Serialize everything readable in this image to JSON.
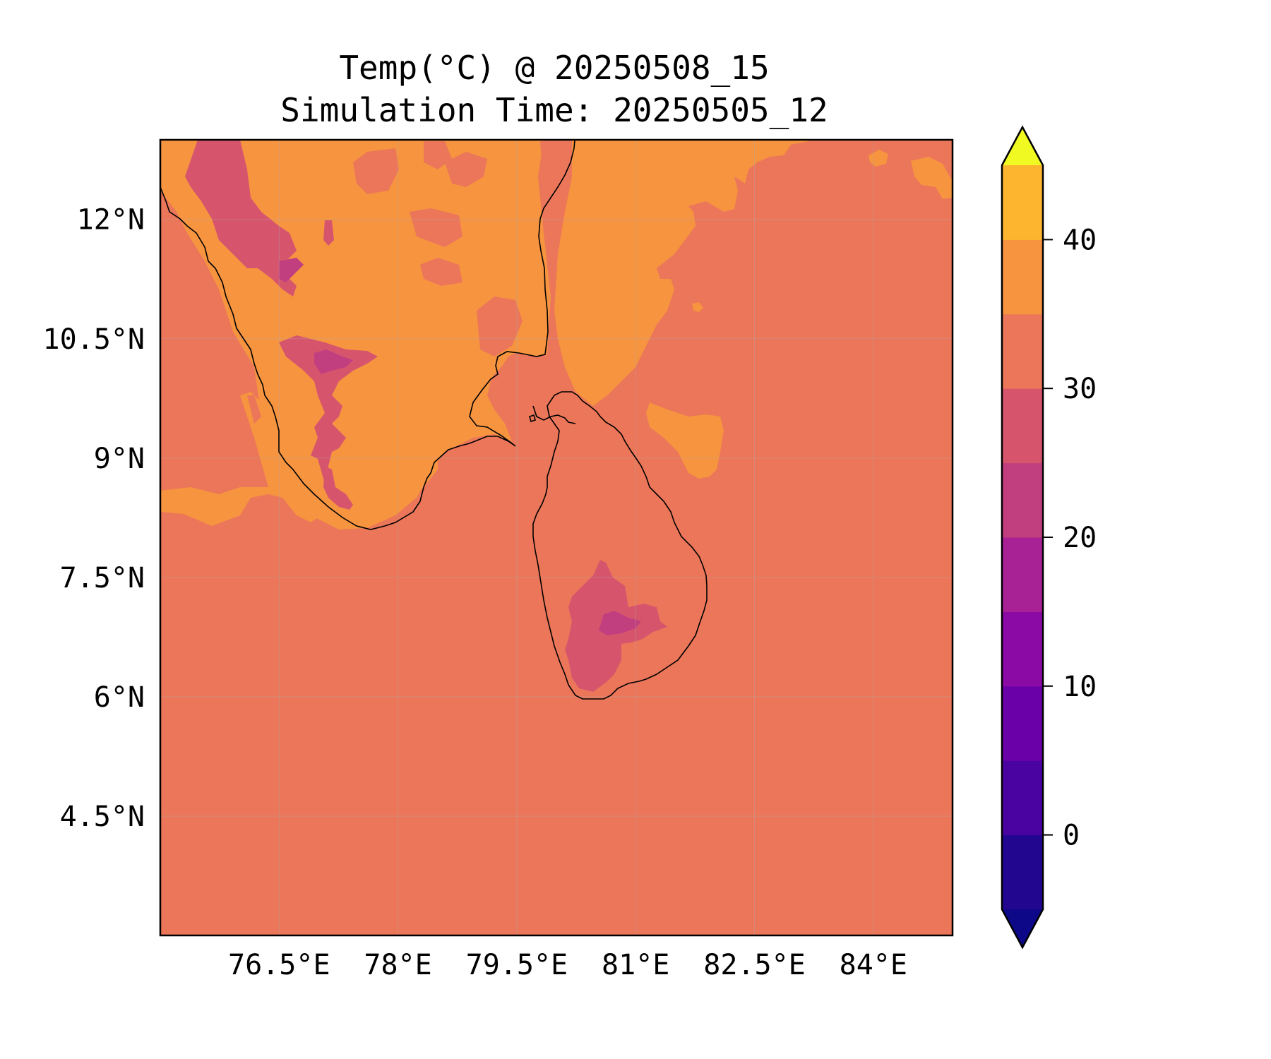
{
  "title": "Temp(°C) @ 20250508_15",
  "subtitle": "Simulation Time: 20250505_12",
  "map": {
    "lon_range": [
      75.0,
      85.0
    ],
    "lat_range": [
      3.0,
      13.0
    ],
    "lon_ticks": [
      {
        "value": 76.5,
        "label": "76.5°E"
      },
      {
        "value": 78.0,
        "label": "78°E"
      },
      {
        "value": 79.5,
        "label": "79.5°E"
      },
      {
        "value": 81.0,
        "label": "81°E"
      },
      {
        "value": 82.5,
        "label": "82.5°E"
      },
      {
        "value": 84.0,
        "label": "84°E"
      }
    ],
    "lat_ticks": [
      {
        "value": 12.0,
        "label": "12°N"
      },
      {
        "value": 10.5,
        "label": "10.5°N"
      },
      {
        "value": 9.0,
        "label": "9°N"
      },
      {
        "value": 7.5,
        "label": "7.5°N"
      },
      {
        "value": 6.0,
        "label": "6°N"
      },
      {
        "value": 4.5,
        "label": "4.5°N"
      }
    ],
    "gridlines": true,
    "background_band_color": "#eb7659",
    "colors": {
      "band_30_35": "#f69440",
      "band_25_30": "#eb7659",
      "band_20_25": "#d6556d",
      "band_15_20": "#c13f7f",
      "band_10_15": "#a82296"
    }
  },
  "colorbar": {
    "levels": [
      -5,
      0,
      5,
      10,
      15,
      20,
      25,
      30,
      35,
      40,
      45
    ],
    "colors": [
      "#220690",
      "#4a02a0",
      "#6a00a8",
      "#8b0aa5",
      "#a82296",
      "#c13f7f",
      "#d6556d",
      "#eb7659",
      "#f69440",
      "#fdb42f",
      "#f3e226"
    ],
    "under_color": "#0d0887",
    "over_color": "#f0f921",
    "ticks": [
      {
        "value": 0,
        "label": "0"
      },
      {
        "value": 10,
        "label": "10"
      },
      {
        "value": 20,
        "label": "20"
      },
      {
        "value": 30,
        "label": "30"
      },
      {
        "value": 40,
        "label": "40"
      }
    ],
    "extend": "both"
  }
}
